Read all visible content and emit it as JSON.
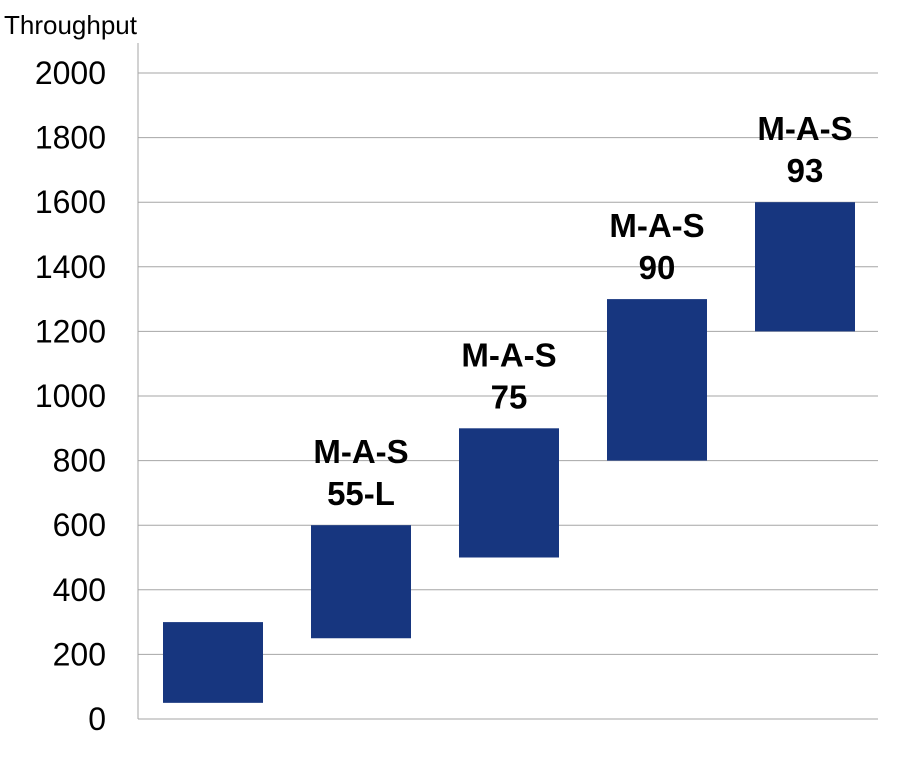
{
  "chart_data": {
    "type": "bar",
    "subtype": "floating",
    "ylabel": "Throughput",
    "xlabel": "",
    "ylim": [
      0,
      2000
    ],
    "yticks": [
      0,
      200,
      400,
      600,
      800,
      1000,
      1200,
      1400,
      1600,
      1800,
      2000
    ],
    "grid": true,
    "legend": "none",
    "bar_color": "#17367f",
    "bars": [
      {
        "low": 50,
        "high": 300,
        "label_line1": "",
        "label_line2": ""
      },
      {
        "low": 250,
        "high": 600,
        "label_line1": "M-A-S",
        "label_line2": "55-L"
      },
      {
        "low": 500,
        "high": 900,
        "label_line1": "M-A-S",
        "label_line2": "75"
      },
      {
        "low": 800,
        "high": 1300,
        "label_line1": "M-A-S",
        "label_line2": "90"
      },
      {
        "low": 1200,
        "high": 1600,
        "label_line1": "M-A-S",
        "label_line2": "93"
      }
    ]
  }
}
